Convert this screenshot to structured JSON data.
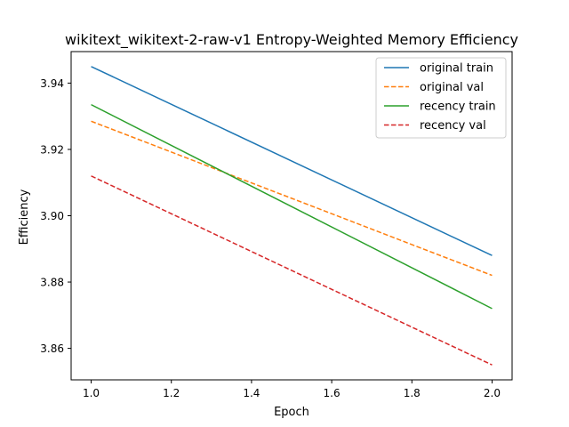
{
  "chart_data": {
    "type": "line",
    "title": "wikitext_wikitext-2-raw-v1 Entropy-Weighted Memory Efficiency",
    "xlabel": "Epoch",
    "ylabel": "Efficiency",
    "xlim": [
      0.95,
      2.05
    ],
    "ylim": [
      3.8505,
      3.9495
    ],
    "xticks": [
      1.0,
      1.2,
      1.4,
      1.6,
      1.8,
      2.0
    ],
    "xtick_labels": [
      "1.0",
      "1.2",
      "1.4",
      "1.6",
      "1.8",
      "2.0"
    ],
    "yticks": [
      3.86,
      3.88,
      3.9,
      3.92,
      3.94
    ],
    "ytick_labels": [
      "3.86",
      "3.88",
      "3.90",
      "3.92",
      "3.94"
    ],
    "grid": false,
    "legend_position": "top-right",
    "series": [
      {
        "name": "original train",
        "x": [
          1.0,
          2.0
        ],
        "y": [
          3.945,
          3.888
        ],
        "color": "#1f77b4",
        "style": "solid"
      },
      {
        "name": "original val",
        "x": [
          1.0,
          2.0
        ],
        "y": [
          3.9285,
          3.882
        ],
        "color": "#ff7f0e",
        "style": "dashed"
      },
      {
        "name": "recency train",
        "x": [
          1.0,
          2.0
        ],
        "y": [
          3.9335,
          3.872
        ],
        "color": "#2ca02c",
        "style": "solid"
      },
      {
        "name": "recency val",
        "x": [
          1.0,
          2.0
        ],
        "y": [
          3.912,
          3.855
        ],
        "color": "#d62728",
        "style": "dashed"
      }
    ]
  }
}
